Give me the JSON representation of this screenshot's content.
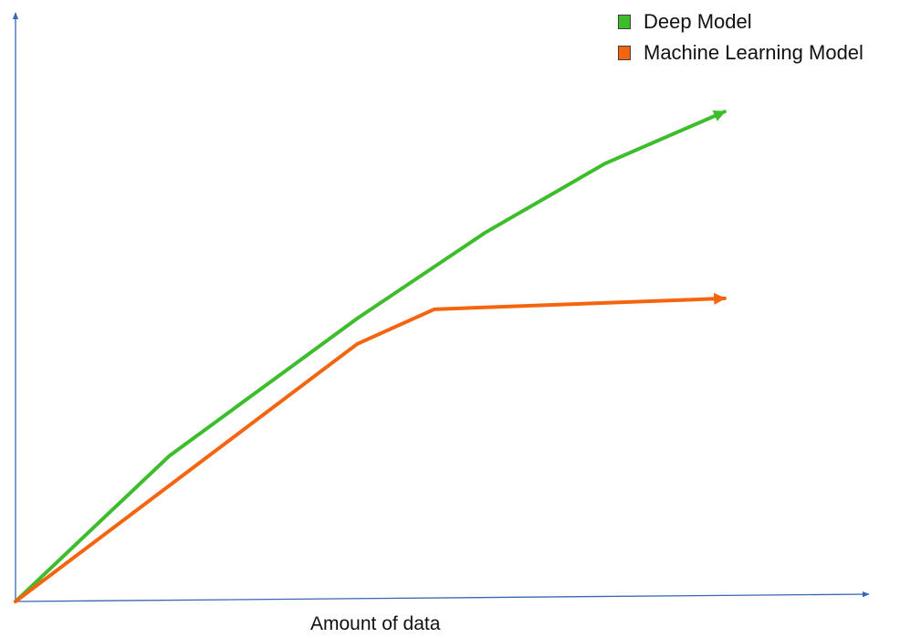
{
  "chart_data": {
    "type": "line",
    "title": "",
    "xlabel": "Amount of data",
    "ylabel": "",
    "grid": false,
    "legend_placement": "top-right",
    "axis_color": "#3a66b5",
    "series": [
      {
        "name": "Deep Model",
        "color": "#3dbd2c",
        "points": [
          [
            0,
            0
          ],
          [
            18,
            17
          ],
          [
            40,
            33
          ],
          [
            55,
            43
          ],
          [
            69,
            51
          ],
          [
            83,
            57
          ]
        ]
      },
      {
        "name": "Machine Learning Model",
        "color": "#f5640f",
        "points": [
          [
            0,
            0
          ],
          [
            40,
            30
          ],
          [
            49,
            34
          ],
          [
            83,
            35
          ]
        ]
      }
    ],
    "xlim": [
      0,
      100
    ],
    "ylim": [
      0,
      70
    ]
  }
}
